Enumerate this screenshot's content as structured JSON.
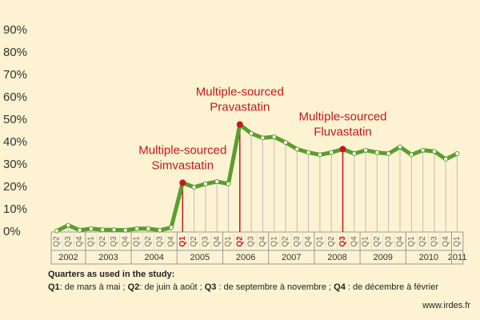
{
  "chart_data": {
    "type": "line",
    "categories": [
      "Q2",
      "Q3",
      "Q4",
      "Q1",
      "Q2",
      "Q3",
      "Q4",
      "Q1",
      "Q2",
      "Q3",
      "Q4",
      "Q1",
      "Q2",
      "Q3",
      "Q4",
      "Q1",
      "Q2",
      "Q3",
      "Q4",
      "Q1",
      "Q2",
      "Q3",
      "Q4",
      "Q1",
      "Q2",
      "Q3",
      "Q4",
      "Q1",
      "Q2",
      "Q3",
      "Q4",
      "Q1",
      "Q2",
      "Q3",
      "Q4",
      "Q1"
    ],
    "year_groups": [
      {
        "label": "2002",
        "quarters": 3
      },
      {
        "label": "2003",
        "quarters": 4
      },
      {
        "label": "2004",
        "quarters": 4
      },
      {
        "label": "2005",
        "quarters": 4
      },
      {
        "label": "2006",
        "quarters": 4
      },
      {
        "label": "2007",
        "quarters": 4
      },
      {
        "label": "2008",
        "quarters": 4
      },
      {
        "label": "2009",
        "quarters": 4
      },
      {
        "label": "2010",
        "quarters": 4
      },
      {
        "label": "2011",
        "quarters": 1
      }
    ],
    "values": [
      0.5,
      3,
      0.8,
      1.5,
      1,
      1,
      0.8,
      1.5,
      1.5,
      0.8,
      2,
      22,
      20,
      21.5,
      22.5,
      21.5,
      48,
      44,
      42,
      42.5,
      40,
      37,
      35.5,
      34.5,
      35.5,
      37,
      35,
      36.5,
      35.5,
      35,
      38,
      34.5,
      36.5,
      36,
      32.5,
      35
    ],
    "color": "#5a9e2f",
    "highlight_color": "#c4161c",
    "ylim": [
      0,
      90
    ],
    "yticks": [
      {
        "value": 0,
        "label": "0%"
      },
      {
        "value": 10,
        "label": "10%"
      },
      {
        "value": 20,
        "label": "20%"
      },
      {
        "value": 30,
        "label": "30%"
      },
      {
        "value": 40,
        "label": "40%"
      },
      {
        "value": 50,
        "label": "50%"
      },
      {
        "value": 60,
        "label": "60%"
      },
      {
        "value": 70,
        "label": "70%"
      },
      {
        "value": 80,
        "label": "80%"
      },
      {
        "value": 90,
        "label": "90%"
      }
    ],
    "annotations": [
      {
        "text": [
          "Multiple-sourced",
          "Simvastatin"
        ],
        "category_index": 11
      },
      {
        "text": [
          "Multiple-sourced",
          "Pravastatin"
        ],
        "category_index": 16
      },
      {
        "text": [
          "Multiple-sourced",
          "Fluvastatin"
        ],
        "category_index": 25
      }
    ],
    "footnote_title": "Quarters as used in the study:",
    "footnote": [
      {
        "key": "Q1",
        "text": ": de mars à mai ; "
      },
      {
        "key": "Q2",
        "text": ": de juin à août ; "
      },
      {
        "key": "Q3",
        "text": " : de septembre à novembre ; "
      },
      {
        "key": "Q4",
        "text": " : de décembre à février"
      }
    ],
    "source": "www.irdes.fr"
  }
}
